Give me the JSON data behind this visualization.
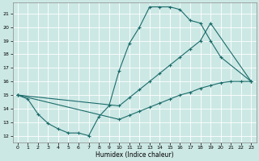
{
  "xlabel": "Humidex (Indice chaleur)",
  "bg_color": "#cce8e4",
  "grid_color": "#ffffff",
  "line_color": "#1a6b6b",
  "xlim": [
    -0.5,
    23.5
  ],
  "ylim": [
    11.5,
    21.8
  ],
  "xticks": [
    0,
    1,
    2,
    3,
    4,
    5,
    6,
    7,
    8,
    9,
    10,
    11,
    12,
    13,
    14,
    15,
    16,
    17,
    18,
    19,
    20,
    21,
    22,
    23
  ],
  "yticks": [
    12,
    13,
    14,
    15,
    16,
    17,
    18,
    19,
    20,
    21
  ],
  "curve1_x": [
    0,
    1,
    2,
    3,
    4,
    5,
    6,
    7,
    8,
    9,
    10,
    11,
    12,
    13,
    14,
    15,
    16,
    17,
    18,
    19,
    20,
    23
  ],
  "curve1_y": [
    15.0,
    14.7,
    13.6,
    12.9,
    12.5,
    12.2,
    12.2,
    12.0,
    13.4,
    14.2,
    16.8,
    18.8,
    20.0,
    21.5,
    21.5,
    21.5,
    21.3,
    20.5,
    20.3,
    19.0,
    17.8,
    16.0
  ],
  "curve2_x": [
    0,
    10,
    11,
    12,
    13,
    14,
    15,
    16,
    17,
    18,
    19,
    23
  ],
  "curve2_y": [
    15.0,
    14.2,
    14.8,
    15.4,
    16.0,
    16.6,
    17.2,
    17.8,
    18.4,
    19.0,
    20.3,
    16.0
  ],
  "curve3_x": [
    0,
    10,
    11,
    12,
    13,
    14,
    15,
    16,
    17,
    18,
    19,
    20,
    21,
    22,
    23
  ],
  "curve3_y": [
    15.0,
    13.2,
    13.5,
    13.8,
    14.1,
    14.4,
    14.7,
    15.0,
    15.2,
    15.5,
    15.7,
    15.9,
    16.0,
    16.0,
    16.0
  ]
}
